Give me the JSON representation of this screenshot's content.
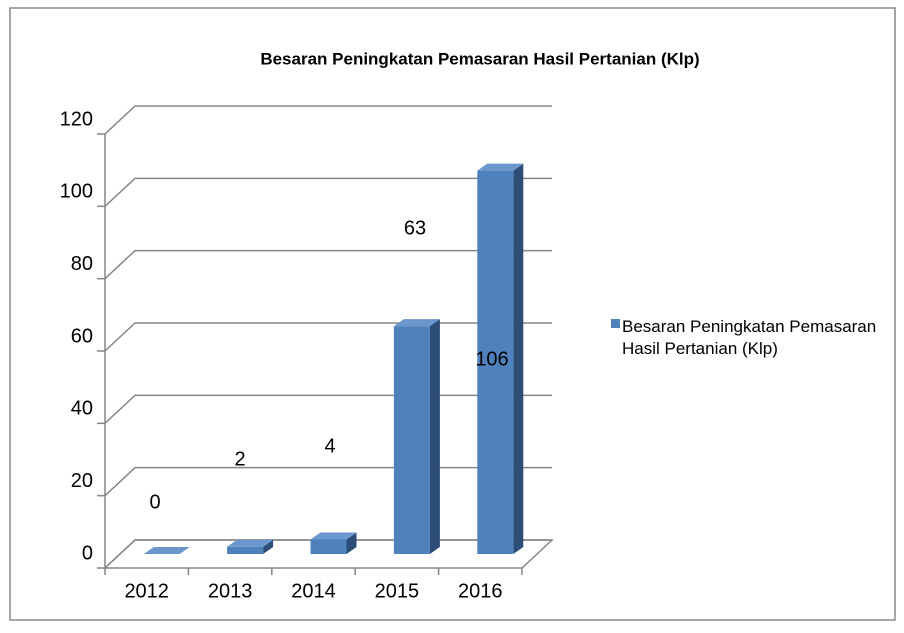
{
  "chart_data": {
    "type": "bar",
    "title": "Besaran Peningkatan Pemasaran Hasil Pertanian (Klp)",
    "categories": [
      "2012",
      "2013",
      "2014",
      "2015",
      "2016"
    ],
    "series": [
      {
        "name": "Besaran Peningkatan Pemasaran Hasil Pertanian (Klp)",
        "color": "#4f81bd",
        "values": [
          0,
          2,
          4,
          63,
          106
        ]
      }
    ],
    "ylim": [
      0,
      120
    ],
    "yticks": [
      0,
      20,
      40,
      60,
      80,
      100,
      120
    ],
    "grid": true,
    "legend": "right"
  }
}
